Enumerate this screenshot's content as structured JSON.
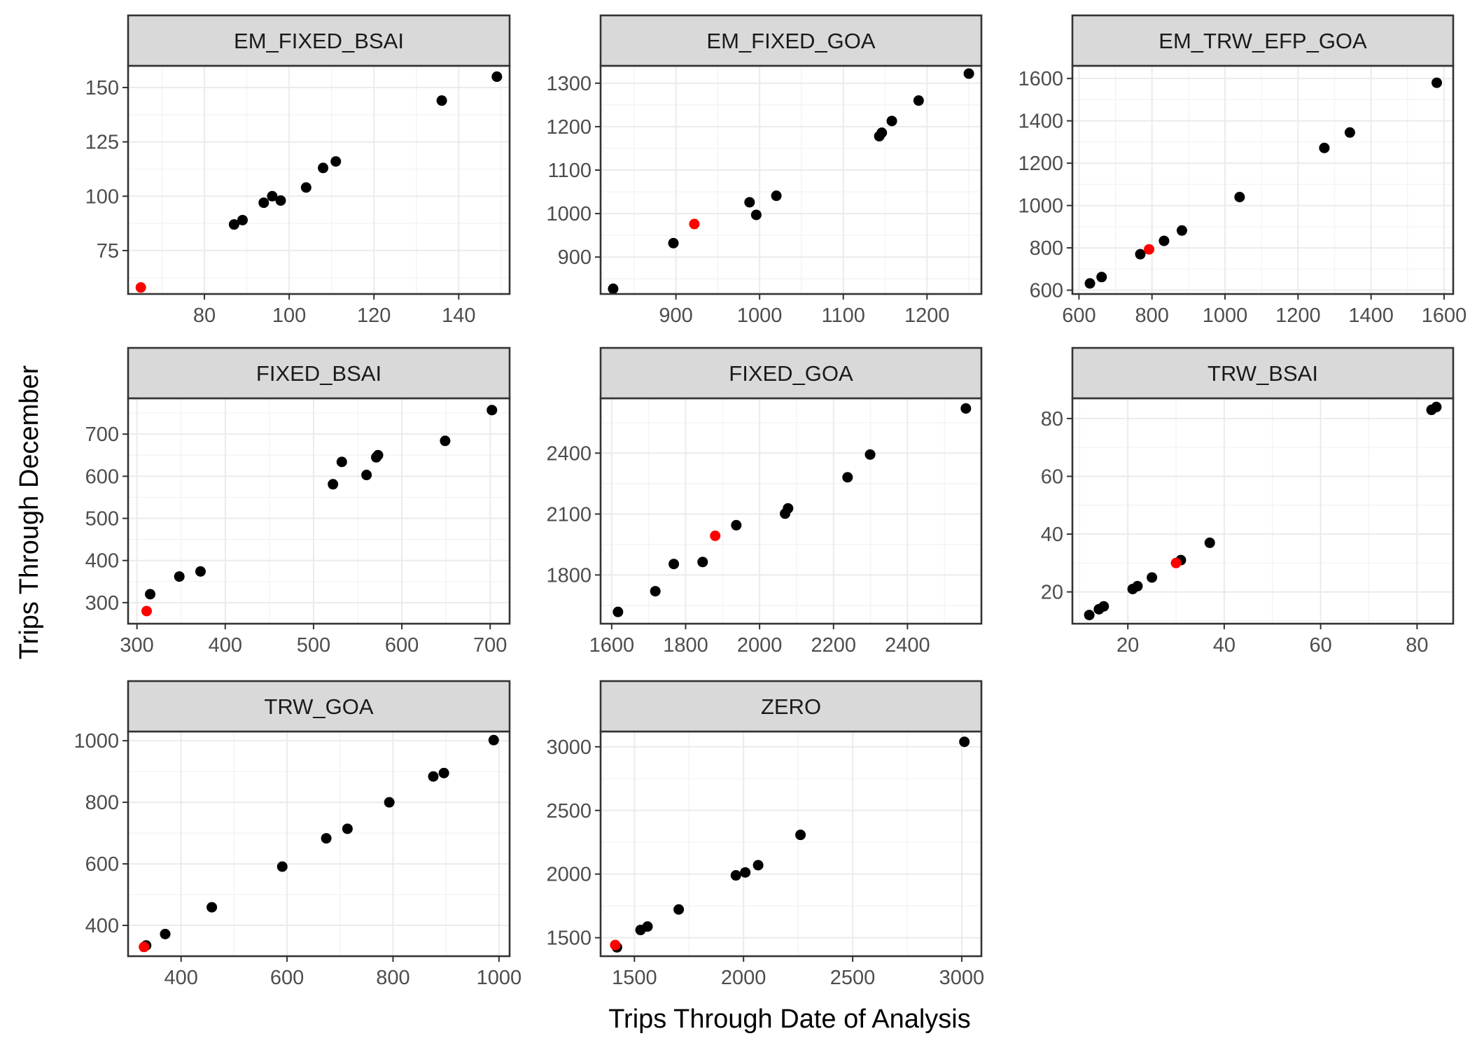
{
  "chart_data": {
    "type": "scatter",
    "xlabel": "Trips Through Date of Analysis",
    "ylabel": "Trips Through December",
    "grid": true,
    "point_colors": {
      "default": "#000000",
      "highlight": "#ff0000"
    },
    "strip_fill": "#d9d9d9",
    "panels": [
      {
        "title": "EM_FIXED_BSAI",
        "xlim": [
          62,
          152
        ],
        "ylim": [
          55,
          160
        ],
        "xticks": [
          80,
          100,
          120,
          140
        ],
        "yticks": [
          75,
          100,
          125,
          150
        ],
        "points": [
          [
            87,
            87
          ],
          [
            89,
            89
          ],
          [
            94,
            97
          ],
          [
            96,
            100
          ],
          [
            98,
            98
          ],
          [
            104,
            104
          ],
          [
            108,
            113
          ],
          [
            111,
            116
          ],
          [
            136,
            144
          ],
          [
            149,
            155
          ]
        ],
        "highlight": [
          [
            65,
            58
          ]
        ]
      },
      {
        "title": "EM_FIXED_GOA",
        "xlim": [
          810,
          1265
        ],
        "ylim": [
          815,
          1340
        ],
        "xticks": [
          900,
          1000,
          1100,
          1200
        ],
        "yticks": [
          900,
          1000,
          1100,
          1200,
          1300
        ],
        "points": [
          [
            825,
            827
          ],
          [
            897,
            932
          ],
          [
            988,
            1026
          ],
          [
            996,
            997
          ],
          [
            1020,
            1041
          ],
          [
            1143,
            1178
          ],
          [
            1146,
            1186
          ],
          [
            1158,
            1213
          ],
          [
            1190,
            1260
          ],
          [
            1250,
            1322
          ]
        ],
        "highlight": [
          [
            922,
            976
          ]
        ]
      },
      {
        "title": "EM_TRW_EFP_GOA",
        "xlim": [
          582,
          1625
        ],
        "ylim": [
          582,
          1660
        ],
        "xticks": [
          600,
          800,
          1000,
          1200,
          1400,
          1600
        ],
        "yticks": [
          600,
          800,
          1000,
          1200,
          1400,
          1600
        ],
        "points": [
          [
            630,
            632
          ],
          [
            662,
            662
          ],
          [
            768,
            770
          ],
          [
            833,
            833
          ],
          [
            882,
            882
          ],
          [
            1040,
            1040
          ],
          [
            1272,
            1272
          ],
          [
            1342,
            1345
          ],
          [
            1580,
            1580
          ]
        ],
        "highlight": [
          [
            792,
            793
          ]
        ]
      },
      {
        "title": "FIXED_BSAI",
        "xlim": [
          290,
          722
        ],
        "ylim": [
          250,
          785
        ],
        "xticks": [
          300,
          400,
          500,
          600,
          700
        ],
        "yticks": [
          300,
          400,
          500,
          600,
          700
        ],
        "points": [
          [
            315,
            320
          ],
          [
            348,
            362
          ],
          [
            372,
            374
          ],
          [
            522,
            581
          ],
          [
            532,
            634
          ],
          [
            560,
            603
          ],
          [
            571,
            645
          ],
          [
            573,
            650
          ],
          [
            649,
            684
          ],
          [
            702,
            757
          ]
        ],
        "highlight": [
          [
            311,
            280
          ]
        ]
      },
      {
        "title": "FIXED_GOA",
        "xlim": [
          1570,
          2600
        ],
        "ylim": [
          1560,
          2670
        ],
        "xticks": [
          1600,
          1800,
          2000,
          2200,
          2400
        ],
        "yticks": [
          1800,
          2100,
          2400
        ],
        "points": [
          [
            1617,
            1618
          ],
          [
            1718,
            1720
          ],
          [
            1768,
            1854
          ],
          [
            1846,
            1864
          ],
          [
            1937,
            2045
          ],
          [
            2069,
            2102
          ],
          [
            2077,
            2128
          ],
          [
            2238,
            2281
          ],
          [
            2299,
            2393
          ],
          [
            2558,
            2620
          ]
        ],
        "highlight": [
          [
            1880,
            1993
          ]
        ]
      },
      {
        "title": "TRW_BSAI",
        "xlim": [
          8.5,
          87.5
        ],
        "ylim": [
          9,
          87
        ],
        "xticks": [
          20,
          40,
          60,
          80
        ],
        "yticks": [
          20,
          40,
          60,
          80
        ],
        "points": [
          [
            12,
            12
          ],
          [
            14,
            14
          ],
          [
            15,
            15
          ],
          [
            21,
            21
          ],
          [
            22,
            22
          ],
          [
            25,
            25
          ],
          [
            31,
            31
          ],
          [
            37,
            37
          ],
          [
            83,
            83
          ],
          [
            84,
            84
          ]
        ],
        "highlight": [
          [
            30,
            30
          ]
        ]
      },
      {
        "title": "TRW_GOA",
        "xlim": [
          300,
          1020
        ],
        "ylim": [
          300,
          1030
        ],
        "xticks": [
          400,
          600,
          800,
          1000
        ],
        "yticks": [
          400,
          600,
          800,
          1000
        ],
        "points": [
          [
            334,
            335
          ],
          [
            370,
            372
          ],
          [
            458,
            459
          ],
          [
            591,
            591
          ],
          [
            674,
            683
          ],
          [
            714,
            714
          ],
          [
            793,
            800
          ],
          [
            876,
            884
          ],
          [
            896,
            895
          ],
          [
            990,
            1002
          ]
        ],
        "highlight": [
          [
            330,
            330
          ]
        ]
      },
      {
        "title": "ZERO",
        "xlim": [
          1345,
          3090
        ],
        "ylim": [
          1355,
          3120
        ],
        "xticks": [
          1500,
          2000,
          2500,
          3000
        ],
        "yticks": [
          1500,
          2000,
          2500,
          3000
        ],
        "points": [
          [
            1420,
            1425
          ],
          [
            1528,
            1561
          ],
          [
            1560,
            1588
          ],
          [
            1703,
            1722
          ],
          [
            1965,
            1990
          ],
          [
            2008,
            2013
          ],
          [
            2067,
            2070
          ],
          [
            2261,
            2308
          ],
          [
            3012,
            3039
          ]
        ],
        "highlight": [
          [
            1412,
            1443
          ]
        ]
      }
    ]
  }
}
